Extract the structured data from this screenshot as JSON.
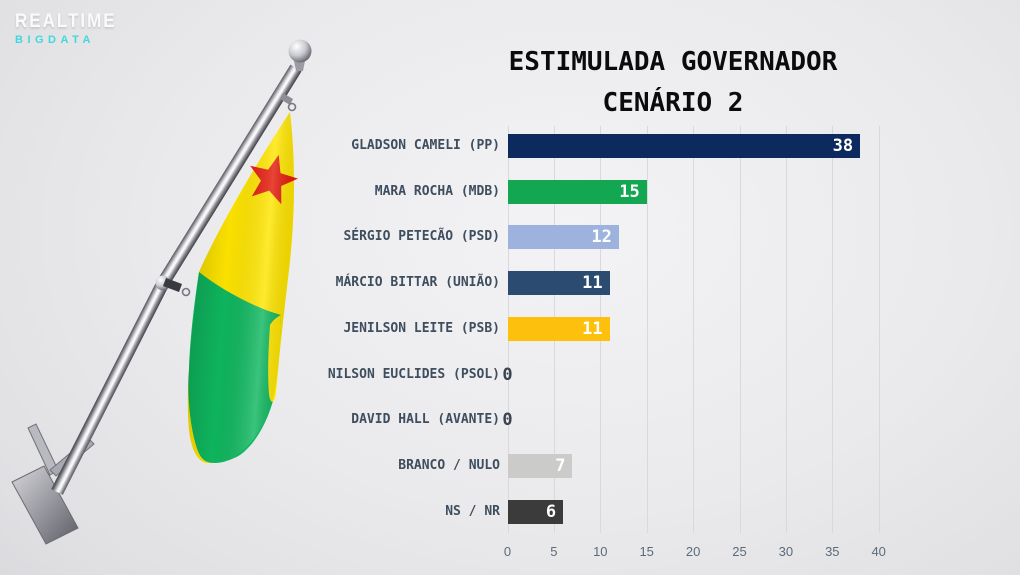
{
  "logo": {
    "line1": "REALTIME",
    "line2": "BIGDATA",
    "line2_color": "#3ed8e0"
  },
  "title": {
    "line1": "ESTIMULADA GOVERNADOR",
    "line2": "CENÁRIO 2"
  },
  "chart_data": {
    "type": "bar",
    "orientation": "horizontal",
    "title": "ESTIMULADA GOVERNADOR CENÁRIO 2",
    "categories": [
      "GLADSON CAMELI (PP)",
      "MARA ROCHA (MDB)",
      "SÉRGIO PETECÃO (PSD)",
      "MÁRCIO BITTAR (UNIÃO)",
      "JENILSON LEITE (PSB)",
      "NILSON EUCLIDES (PSOL)",
      "DAVID HALL (AVANTE)",
      "BRANCO / NULO",
      "NS / NR"
    ],
    "values": [
      38,
      15,
      12,
      11,
      11,
      0,
      0,
      7,
      6
    ],
    "bar_colors": [
      "#0d2a5e",
      "#13a751",
      "#9db3dd",
      "#2b4c70",
      "#fdc10d",
      null,
      null,
      "#cbcbc9",
      "#3b3b3b"
    ],
    "value_label_color_inside": "#ffffff",
    "value_label_color_zero": "#3a4350",
    "xlim": [
      0,
      40
    ],
    "xticks": [
      "0",
      "5",
      "10",
      "15",
      "20",
      "25",
      "30",
      "35",
      "40"
    ],
    "grid": "vertical",
    "legend": false,
    "xlabel": "",
    "ylabel": ""
  },
  "flag": {
    "name": "flag-of-acre-on-pole",
    "yellow": "#ffe500",
    "green": "#0fb75f",
    "star_red": "#e31b0c"
  }
}
